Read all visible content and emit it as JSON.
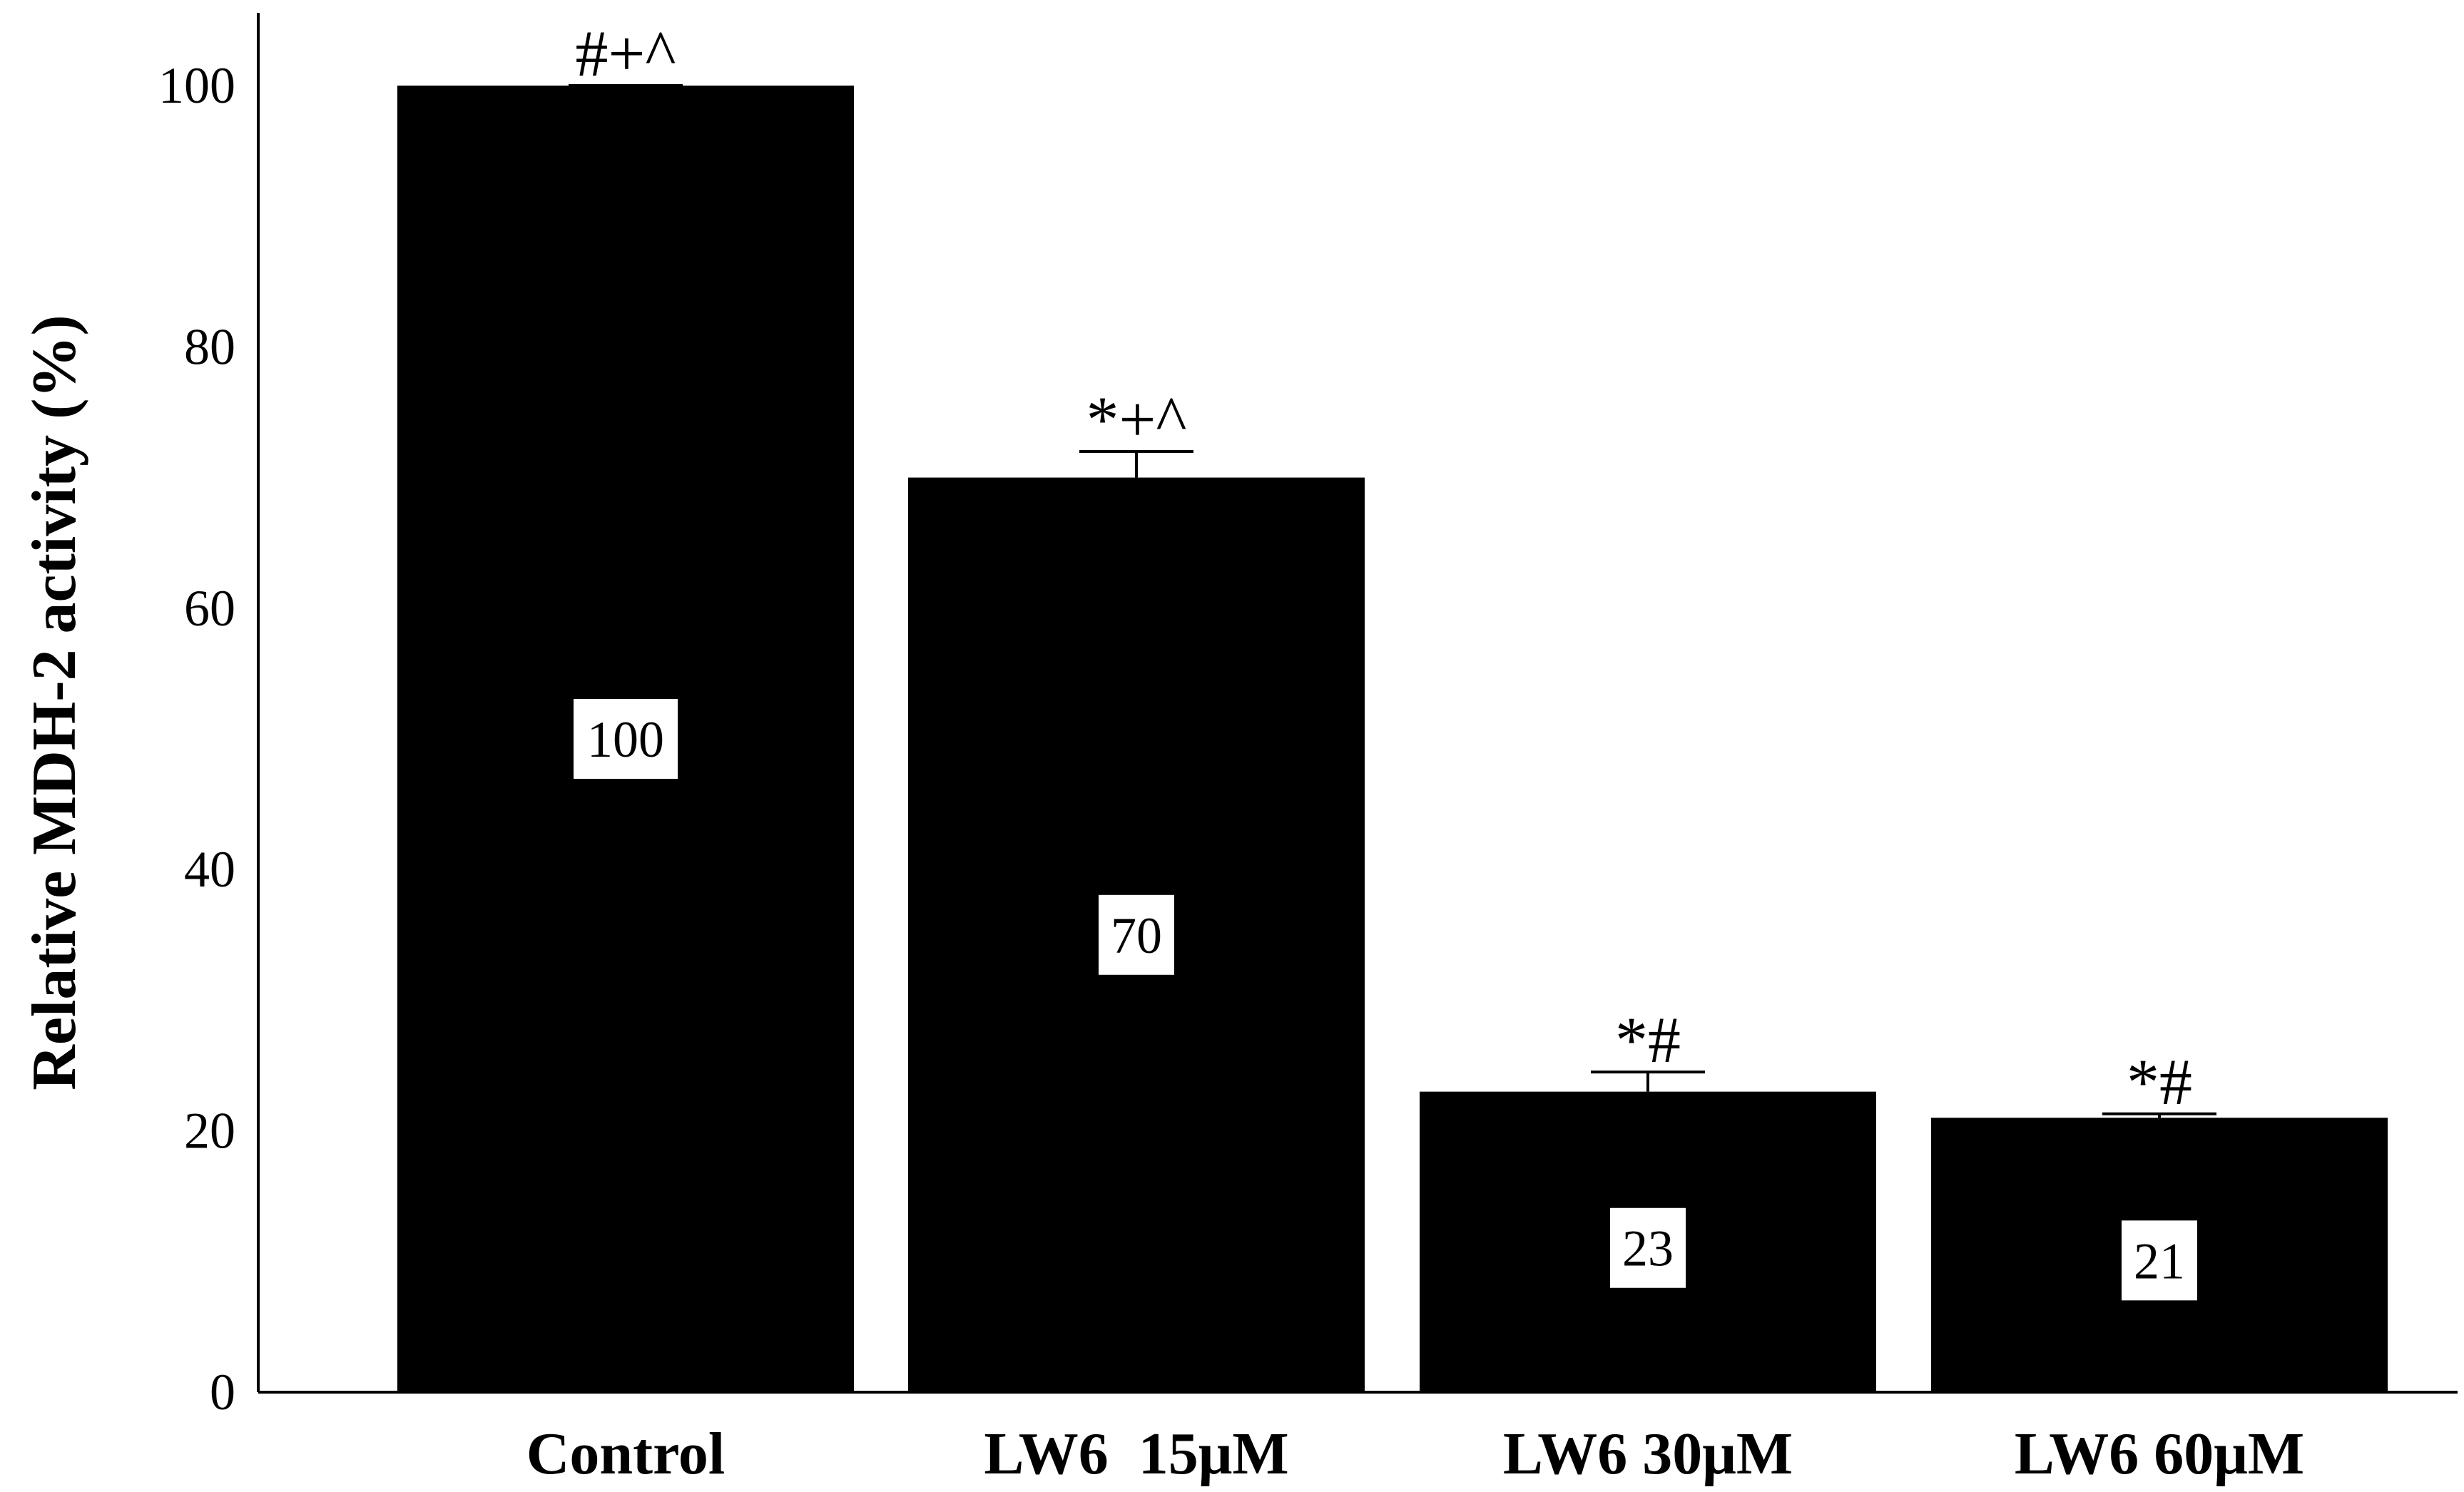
{
  "chart_data": {
    "type": "bar",
    "title": "",
    "xlabel": "",
    "ylabel": "Relative MDH-2 activity (%)",
    "ylim": [
      0,
      100
    ],
    "yticks": [
      0,
      20,
      40,
      60,
      80,
      100
    ],
    "categories": [
      "Control",
      "LW6  15μM",
      "LW6 30μM",
      "LW6 60μM"
    ],
    "values": [
      100,
      70,
      23,
      21
    ],
    "errors": [
      0,
      2,
      1.5,
      0.3
    ],
    "data_labels": [
      "100",
      "70",
      "23",
      "21"
    ],
    "significance": [
      "#+^",
      "*+^",
      "*#",
      "*#"
    ],
    "bar_color": "#000000",
    "axis_color": "#000000",
    "label_box_color": "#ffffff"
  }
}
